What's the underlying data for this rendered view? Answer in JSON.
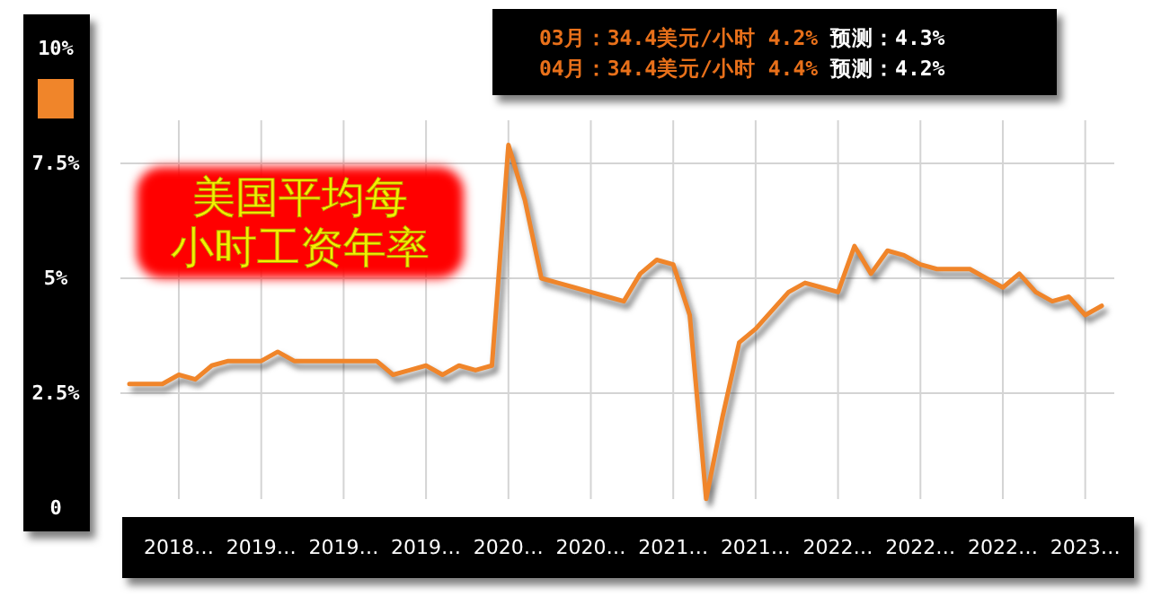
{
  "chart_data": {
    "type": "line",
    "title": "美国平均每小时工资年率",
    "annotations": [
      "03月：34.4美元/小时 4.2% 预测：4.3%",
      "04月：34.4美元/小时 4.4% 预测：4.2%"
    ],
    "categories": [
      null,
      null,
      null,
      "2018…",
      null,
      null,
      null,
      null,
      "2019…",
      null,
      null,
      null,
      null,
      "2019…",
      null,
      null,
      null,
      null,
      "2019…",
      null,
      null,
      null,
      null,
      "2020…",
      null,
      null,
      null,
      null,
      "2020…",
      null,
      null,
      null,
      null,
      "2021…",
      null,
      null,
      null,
      null,
      "2021…",
      null,
      null,
      null,
      null,
      "2022…",
      null,
      null,
      null,
      null,
      "2022…",
      null,
      null,
      null,
      null,
      "2022…",
      null,
      null,
      null,
      null,
      "2023…",
      null
    ],
    "values": [
      2.7,
      2.7,
      2.7,
      2.9,
      2.8,
      3.1,
      3.2,
      3.2,
      3.2,
      3.4,
      3.2,
      3.2,
      3.2,
      3.2,
      3.2,
      3.2,
      2.9,
      3.0,
      3.1,
      2.9,
      3.1,
      3.0,
      3.1,
      7.9,
      6.7,
      5.0,
      4.9,
      4.8,
      4.7,
      4.6,
      4.5,
      5.1,
      5.4,
      5.3,
      4.2,
      0.2,
      2.0,
      3.6,
      3.9,
      4.3,
      4.7,
      4.9,
      4.8,
      4.7,
      5.7,
      5.1,
      5.6,
      5.5,
      5.3,
      5.2,
      5.2,
      5.2,
      5.0,
      4.8,
      5.1,
      4.7,
      4.5,
      4.6,
      4.2,
      4.4
    ],
    "color": "#f0852a",
    "ylim": [
      0,
      10
    ],
    "yticks": [
      0,
      {
        "value": 2.5,
        "label": "2.5%"
      },
      {
        "value": 5,
        "label": "5%"
      },
      {
        "value": 7.5,
        "label": "7.5%"
      },
      {
        "value": 10,
        "label": "10%"
      }
    ],
    "grid": true
  }
}
